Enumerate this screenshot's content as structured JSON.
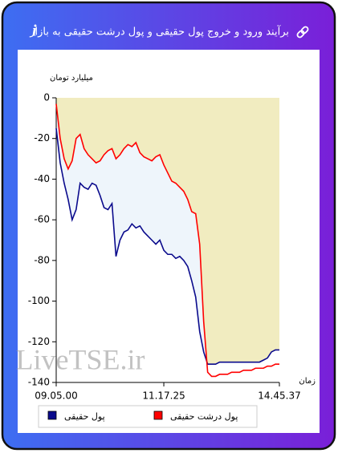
{
  "header": {
    "title": "برآیند ورود و خروج پول حقیقی و پول درشت حقیقی به بازار"
  },
  "watermark": "LiveTSE.ir",
  "chart_data": {
    "type": "line",
    "ylabel": "میلیارد تومان",
    "xlabel": "زمان",
    "categories": [
      "09.05.00",
      null,
      null,
      null,
      null,
      null,
      null,
      null,
      null,
      null,
      null,
      null,
      null,
      null,
      null,
      null,
      null,
      null,
      null,
      null,
      null,
      null,
      null,
      null,
      null,
      null,
      null,
      "11.17.25",
      null,
      null,
      null,
      null,
      null,
      null,
      null,
      null,
      null,
      null,
      null,
      null,
      null,
      null,
      null,
      null,
      null,
      null,
      null,
      null,
      null,
      null,
      null,
      null,
      null,
      null,
      null,
      null,
      "14.45.37"
    ],
    "series": [
      {
        "name": "پول حقیقی",
        "color": "#0a0a8c",
        "values": [
          -15,
          -32,
          -42,
          -50,
          -60,
          -55,
          -42,
          -44,
          -45,
          -42,
          -43,
          -48,
          -54,
          -55,
          -52,
          -78,
          -70,
          -66,
          -65,
          -62,
          -64,
          -63,
          -66,
          -68,
          -70,
          -72,
          -70,
          -75,
          -77,
          -77,
          -79,
          -78,
          -80,
          -83,
          -90,
          -98,
          -115,
          -125,
          -131,
          -131,
          -131,
          -130,
          -130,
          -130,
          -130,
          -130,
          -130,
          -130,
          -130,
          -130,
          -130,
          -130,
          -129,
          -128,
          -125,
          -124,
          -124
        ]
      },
      {
        "name": "پول درشت حقیقی",
        "color": "#ff0000",
        "values": [
          -3,
          -20,
          -30,
          -35,
          -31,
          -20,
          -18,
          -25,
          -28,
          -30,
          -32,
          -31,
          -28,
          -26,
          -25,
          -30,
          -28,
          -25,
          -23,
          -24,
          -22,
          -27,
          -29,
          -30,
          -31,
          -29,
          -28,
          -33,
          -37,
          -41,
          -42,
          -44,
          -46,
          -50,
          -56,
          -57,
          -72,
          -110,
          -135,
          -137,
          -137,
          -136,
          -136,
          -136,
          -135,
          -135,
          -135,
          -134,
          -134,
          -134,
          -133,
          -133,
          -133,
          -132,
          -132,
          -131,
          -131
        ]
      }
    ],
    "ylim": [
      -140,
      0
    ],
    "yticks": [
      -140,
      -120,
      -100,
      -80,
      -60,
      -40,
      -20,
      0
    ]
  }
}
